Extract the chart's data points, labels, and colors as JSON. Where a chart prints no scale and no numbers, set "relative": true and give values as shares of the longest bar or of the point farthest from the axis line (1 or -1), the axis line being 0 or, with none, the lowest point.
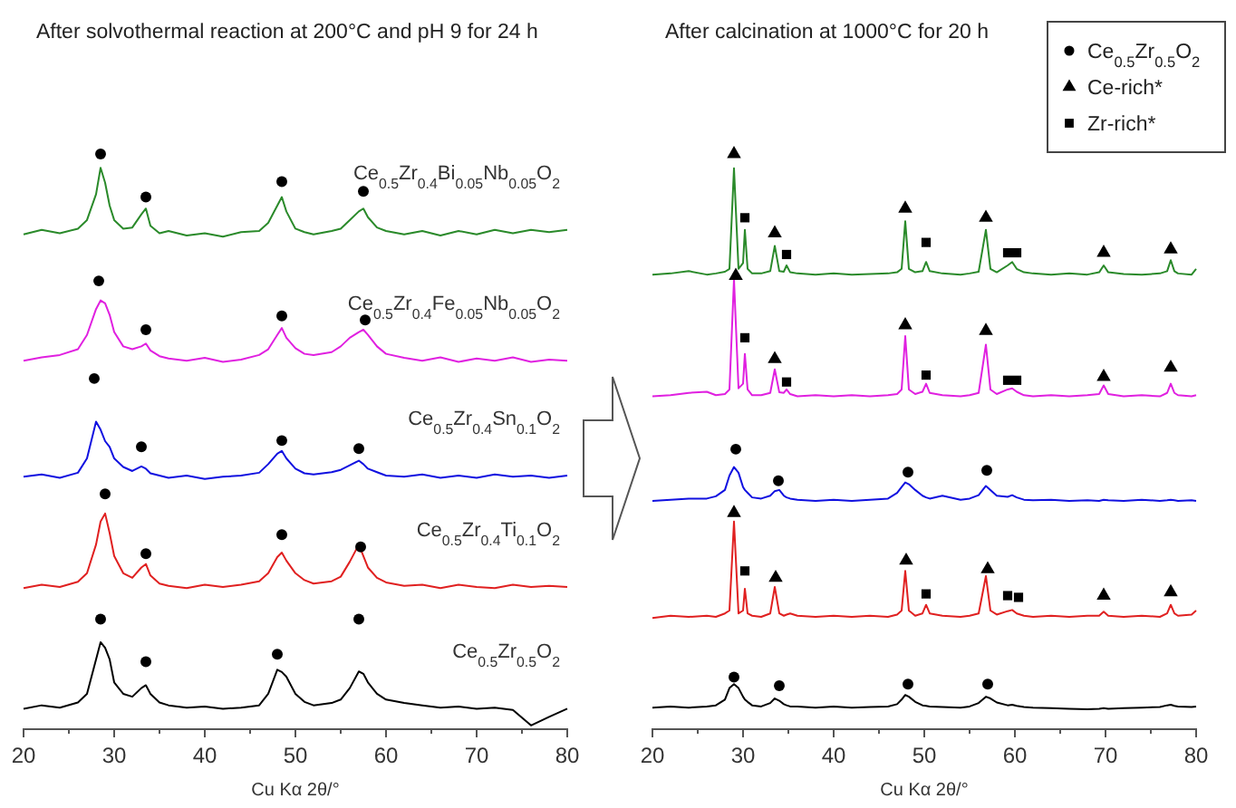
{
  "chart_data": [
    {
      "type": "line",
      "title": "After solvothermal  reaction at 200°C and pH 9 for 24 h",
      "xlabel": "Cu Kα 2θ/°",
      "relative": true,
      "xlim": [
        20,
        80
      ],
      "xticks": [
        20,
        {
          "value": 25,
          "label": null
        },
        30,
        {
          "value": 35,
          "label": null
        },
        40,
        {
          "value": 45,
          "label": null
        },
        50,
        {
          "value": 55,
          "label": null
        },
        60,
        {
          "value": 65,
          "label": null
        },
        70,
        {
          "value": 75,
          "label": null
        },
        80
      ],
      "x": [
        20,
        22,
        24,
        26,
        27,
        28,
        28.5,
        29,
        29.5,
        30,
        31,
        32,
        33,
        33.5,
        34,
        35,
        36,
        38,
        40,
        42,
        44,
        46,
        47,
        48,
        48.5,
        49,
        50,
        51,
        52,
        54,
        55,
        56,
        57,
        57.5,
        58,
        59,
        60,
        62,
        64,
        66,
        68,
        70,
        72,
        74,
        76,
        78,
        80
      ],
      "series": [
        {
          "name": "Ce$_{0.5}$Zr$_{0.4}$Bi$_{0.05}$Nb$_{0.05}$O$_{2}$",
          "color": "#2a8a2a",
          "values": [
            0.86,
            0.868,
            0.862,
            0.87,
            0.885,
            0.93,
            0.976,
            0.95,
            0.91,
            0.885,
            0.87,
            0.872,
            0.895,
            0.905,
            0.875,
            0.862,
            0.866,
            0.858,
            0.862,
            0.856,
            0.864,
            0.866,
            0.88,
            0.91,
            0.925,
            0.9,
            0.87,
            0.864,
            0.86,
            0.866,
            0.87,
            0.885,
            0.9,
            0.905,
            0.89,
            0.872,
            0.866,
            0.86,
            0.866,
            0.858,
            0.866,
            0.86,
            0.868,
            0.862,
            0.868,
            0.864,
            0.868
          ]
        },
        {
          "name": "Ce$_{0.5}$Zr$_{0.4}$Fe$_{0.05}$Nb$_{0.05}$O$_{2}$",
          "color": "#e020e0",
          "values": [
            0.64,
            0.646,
            0.65,
            0.66,
            0.685,
            0.73,
            0.745,
            0.74,
            0.72,
            0.69,
            0.665,
            0.66,
            0.665,
            0.67,
            0.658,
            0.648,
            0.644,
            0.64,
            0.645,
            0.638,
            0.642,
            0.65,
            0.66,
            0.685,
            0.697,
            0.68,
            0.662,
            0.652,
            0.65,
            0.655,
            0.665,
            0.68,
            0.69,
            0.694,
            0.685,
            0.665,
            0.652,
            0.645,
            0.64,
            0.646,
            0.638,
            0.644,
            0.64,
            0.646,
            0.638,
            0.642,
            0.64
          ]
        },
        {
          "name": "Ce$_{0.5}$Zr$_{0.4}$Sn$_{0.1}$O$_{2}$",
          "color": "#1010e0",
          "values": [
            0.438,
            0.442,
            0.436,
            0.445,
            0.47,
            0.534,
            0.52,
            0.5,
            0.49,
            0.47,
            0.455,
            0.448,
            0.456,
            0.452,
            0.444,
            0.44,
            0.436,
            0.44,
            0.434,
            0.438,
            0.44,
            0.445,
            0.46,
            0.478,
            0.483,
            0.47,
            0.452,
            0.444,
            0.442,
            0.446,
            0.45,
            0.458,
            0.466,
            0.46,
            0.452,
            0.446,
            0.44,
            0.438,
            0.442,
            0.436,
            0.44,
            0.436,
            0.442,
            0.438,
            0.44,
            0.436,
            0.44
          ]
        },
        {
          "name": "Ce$_{0.5}$Zr$_{0.4}$Ti$_{0.1}$O$_{2}$",
          "color": "#e02020",
          "values": [
            0.244,
            0.25,
            0.246,
            0.255,
            0.27,
            0.32,
            0.36,
            0.374,
            0.34,
            0.3,
            0.27,
            0.262,
            0.28,
            0.286,
            0.266,
            0.252,
            0.248,
            0.244,
            0.25,
            0.246,
            0.25,
            0.256,
            0.27,
            0.298,
            0.306,
            0.292,
            0.27,
            0.258,
            0.252,
            0.256,
            0.264,
            0.29,
            0.32,
            0.3,
            0.28,
            0.262,
            0.254,
            0.248,
            0.25,
            0.244,
            0.25,
            0.246,
            0.244,
            0.25,
            0.246,
            0.248,
            0.246
          ]
        },
        {
          "name": "Ce$_{0.5}$Zr$_{0.5}$O$_{2}$",
          "color": "#000000",
          "values": [
            0.034,
            0.04,
            0.036,
            0.045,
            0.06,
            0.12,
            0.15,
            0.14,
            0.12,
            0.08,
            0.06,
            0.055,
            0.07,
            0.075,
            0.06,
            0.045,
            0.04,
            0.036,
            0.038,
            0.034,
            0.036,
            0.04,
            0.06,
            0.102,
            0.098,
            0.09,
            0.06,
            0.046,
            0.04,
            0.044,
            0.05,
            0.07,
            0.099,
            0.095,
            0.08,
            0.06,
            0.05,
            0.044,
            0.04,
            0.036,
            0.038,
            0.034,
            0.036,
            0.032,
            0.005,
            0.02,
            0.034
          ]
        },
        {
          "type": "scatter",
          "marker": "circle",
          "color": "#000000",
          "x": [
            28.5,
            33.5,
            48.5,
            57.5,
            28.3,
            33.5,
            48.5,
            57.7,
            27.8,
            33,
            48.5,
            57,
            29,
            33.5,
            48.5,
            57.2,
            28.5,
            33.5,
            48,
            57
          ],
          "values": [
            1.0,
            0.925,
            0.952,
            0.935,
            0.779,
            0.694,
            0.718,
            0.711,
            0.609,
            0.49,
            0.501,
            0.487,
            0.408,
            0.304,
            0.337,
            0.316,
            0.19,
            0.116,
            0.129,
            0.19
          ]
        }
      ]
    },
    {
      "type": "line",
      "title": "After calcination at 1000°C for 20 h",
      "xlabel": "Cu Kα 2θ/°",
      "relative": true,
      "legend": "top right",
      "xlim": [
        20,
        80
      ],
      "xticks": [
        20,
        {
          "value": 25,
          "label": null
        },
        30,
        {
          "value": 35,
          "label": null
        },
        40,
        {
          "value": 45,
          "label": null
        },
        50,
        {
          "value": 55,
          "label": null
        },
        60,
        {
          "value": 65,
          "label": null
        },
        70,
        {
          "value": 75,
          "label": null
        },
        80
      ],
      "x": [
        20,
        22,
        24,
        26,
        27,
        28,
        28.5,
        29,
        29.5,
        30,
        30.2,
        30.5,
        31,
        32,
        33,
        33.5,
        34,
        34.5,
        34.8,
        35.2,
        36,
        38,
        40,
        42,
        44,
        46,
        47,
        47.5,
        47.9,
        48.3,
        49,
        49.8,
        50.2,
        50.6,
        52,
        54,
        55,
        56,
        56.8,
        57.3,
        58,
        59.2,
        59.7,
        60.2,
        61,
        62,
        64,
        66,
        68,
        69.3,
        69.8,
        70.3,
        72,
        74,
        76,
        76.8,
        77.2,
        77.6,
        78,
        79.5,
        80
      ],
      "series": [
        {
          "color": "#2a8a2a",
          "values": [
            0.79,
            0.792,
            0.796,
            0.79,
            0.792,
            0.795,
            0.8,
            0.975,
            0.8,
            0.81,
            0.868,
            0.8,
            0.792,
            0.792,
            0.796,
            0.84,
            0.796,
            0.795,
            0.806,
            0.794,
            0.792,
            0.79,
            0.792,
            0.79,
            0.791,
            0.792,
            0.794,
            0.8,
            0.883,
            0.8,
            0.794,
            0.796,
            0.812,
            0.796,
            0.792,
            0.79,
            0.792,
            0.795,
            0.868,
            0.8,
            0.794,
            0.806,
            0.812,
            0.8,
            0.794,
            0.792,
            0.79,
            0.792,
            0.79,
            0.794,
            0.806,
            0.794,
            0.791,
            0.79,
            0.792,
            0.796,
            0.815,
            0.796,
            0.792,
            0.79,
            0.8
          ]
        },
        {
          "color": "#e020e0",
          "values": [
            0.578,
            0.58,
            0.584,
            0.586,
            0.58,
            0.582,
            0.59,
            0.782,
            0.592,
            0.6,
            0.652,
            0.59,
            0.58,
            0.58,
            0.584,
            0.625,
            0.585,
            0.584,
            0.59,
            0.582,
            0.578,
            0.58,
            0.578,
            0.58,
            0.578,
            0.58,
            0.582,
            0.59,
            0.683,
            0.59,
            0.582,
            0.586,
            0.6,
            0.584,
            0.58,
            0.578,
            0.58,
            0.584,
            0.668,
            0.59,
            0.582,
            0.59,
            0.592,
            0.586,
            0.58,
            0.578,
            0.58,
            0.578,
            0.58,
            0.582,
            0.597,
            0.582,
            0.578,
            0.58,
            0.578,
            0.584,
            0.6,
            0.584,
            0.58,
            0.578,
            0.58
          ]
        },
        {
          "color": "#1010e0",
          "values": [
            0.396,
            0.398,
            0.4,
            0.4,
            0.404,
            0.415,
            0.44,
            0.455,
            0.445,
            0.42,
            0.415,
            0.41,
            0.402,
            0.4,
            0.405,
            0.413,
            0.415,
            0.405,
            0.402,
            0.4,
            0.398,
            0.396,
            0.398,
            0.396,
            0.398,
            0.4,
            0.41,
            0.42,
            0.428,
            0.425,
            0.415,
            0.405,
            0.402,
            0.4,
            0.405,
            0.398,
            0.4,
            0.406,
            0.422,
            0.415,
            0.405,
            0.403,
            0.406,
            0.402,
            0.398,
            0.397,
            0.398,
            0.396,
            0.397,
            0.396,
            0.398,
            0.397,
            0.396,
            0.398,
            0.396,
            0.397,
            0.398,
            0.397,
            0.396,
            0.397,
            0.396
          ]
        },
        {
          "color": "#e02020",
          "values": [
            0.192,
            0.196,
            0.194,
            0.196,
            0.194,
            0.2,
            0.205,
            0.36,
            0.2,
            0.205,
            0.243,
            0.2,
            0.196,
            0.194,
            0.2,
            0.246,
            0.2,
            0.196,
            0.198,
            0.2,
            0.196,
            0.194,
            0.196,
            0.194,
            0.196,
            0.194,
            0.198,
            0.205,
            0.274,
            0.205,
            0.196,
            0.2,
            0.215,
            0.2,
            0.196,
            0.194,
            0.196,
            0.2,
            0.265,
            0.205,
            0.198,
            0.204,
            0.206,
            0.2,
            0.196,
            0.194,
            0.196,
            0.194,
            0.196,
            0.196,
            0.203,
            0.196,
            0.194,
            0.196,
            0.194,
            0.2,
            0.215,
            0.2,
            0.196,
            0.198,
            0.205
          ]
        },
        {
          "color": "#000000",
          "values": [
            0.036,
            0.038,
            0.036,
            0.038,
            0.04,
            0.05,
            0.07,
            0.077,
            0.07,
            0.055,
            0.05,
            0.046,
            0.04,
            0.038,
            0.044,
            0.052,
            0.048,
            0.042,
            0.04,
            0.038,
            0.038,
            0.036,
            0.038,
            0.036,
            0.037,
            0.038,
            0.042,
            0.05,
            0.058,
            0.055,
            0.046,
            0.04,
            0.039,
            0.038,
            0.037,
            0.036,
            0.038,
            0.044,
            0.055,
            0.052,
            0.045,
            0.04,
            0.041,
            0.039,
            0.037,
            0.036,
            0.035,
            0.034,
            0.033,
            0.034,
            0.035,
            0.034,
            0.035,
            0.036,
            0.037,
            0.04,
            0.041,
            0.039,
            0.038,
            0.037,
            0.038
          ]
        },
        {
          "type": "scatter",
          "marker": "circle",
          "name": "Ce$_{0.5}$Zr$_{0.5}$O$_{2}$",
          "color": "#000000",
          "x": [
            29.2,
            33.9,
            48.2,
            56.9,
            29,
            34,
            48.2,
            57
          ],
          "values": [
            0.486,
            0.431,
            0.446,
            0.449,
            0.089,
            0.074,
            0.077,
            0.077
          ]
        },
        {
          "type": "scatter",
          "marker": "triangle",
          "name": "Ce-rich*",
          "color": "#000000",
          "x": [
            29,
            33.5,
            47.9,
            56.8,
            69.8,
            77.2,
            29.2,
            33.5,
            47.9,
            56.8,
            69.8,
            77.2,
            29,
            33.6,
            48,
            57,
            69.8,
            77.2
          ],
          "values": [
            1.0,
            0.862,
            0.905,
            0.889,
            0.828,
            0.834,
            0.788,
            0.643,
            0.702,
            0.692,
            0.612,
            0.628,
            0.375,
            0.262,
            0.292,
            0.277,
            0.231,
            0.237
          ]
        },
        {
          "type": "scatter",
          "marker": "square",
          "name": "Zr-rich*",
          "color": "#000000",
          "x": [
            30.2,
            34.8,
            50.2,
            59.2,
            60.2,
            30.2,
            34.8,
            50.2,
            59.2,
            60.2,
            30.2,
            50.2,
            59.2,
            60.4
          ],
          "values": [
            0.889,
            0.825,
            0.846,
            0.828,
            0.828,
            0.68,
            0.603,
            0.615,
            0.606,
            0.606,
            0.274,
            0.234,
            0.231,
            0.228
          ]
        }
      ]
    }
  ]
}
